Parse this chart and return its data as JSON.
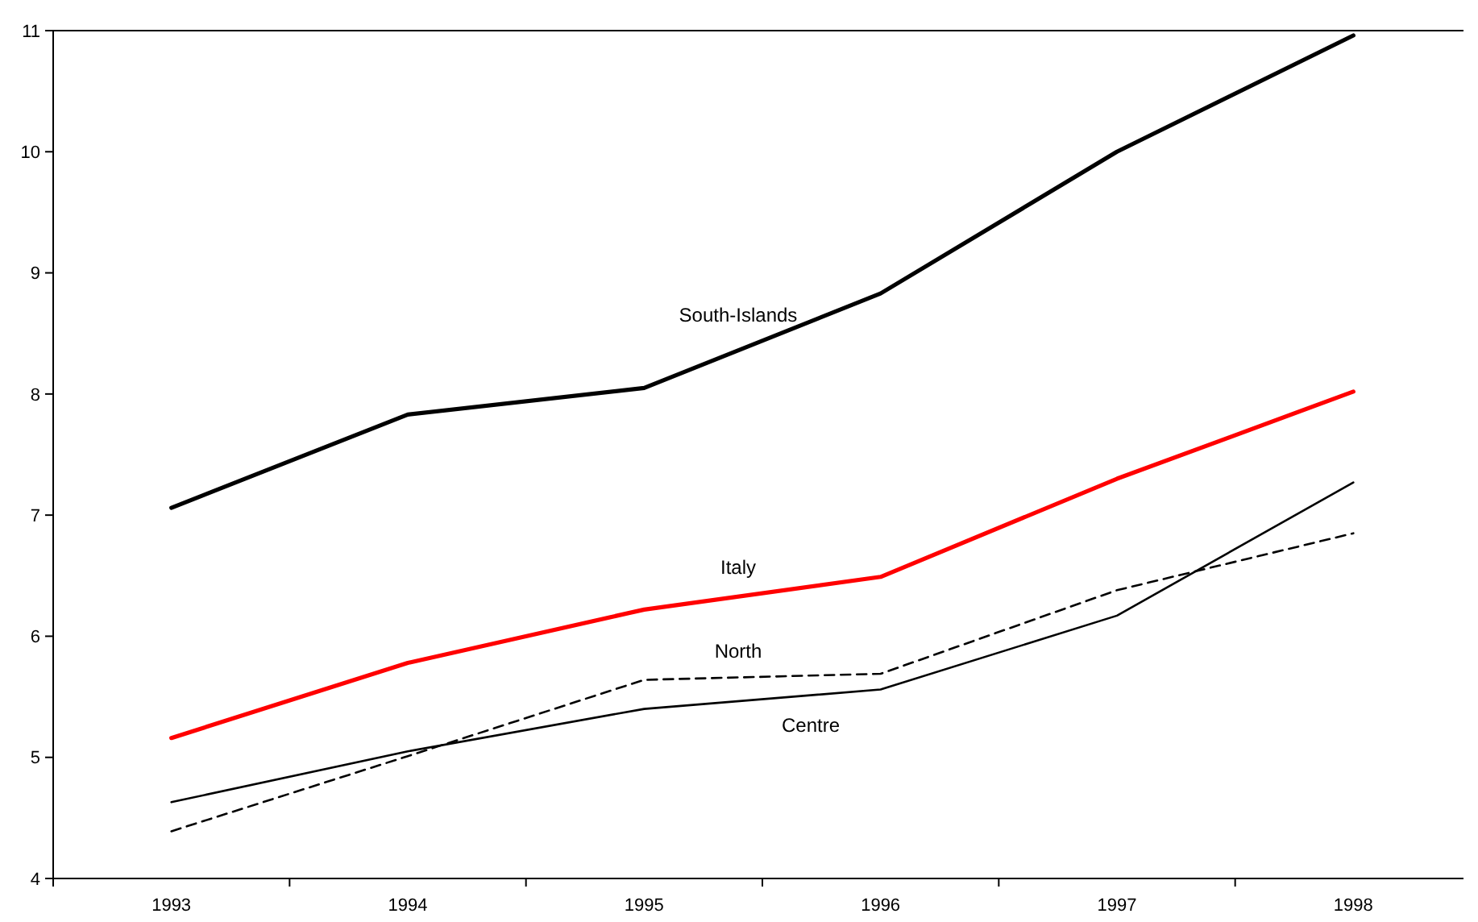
{
  "chart_data": {
    "type": "line",
    "categories": [
      "1993",
      "1994",
      "1995",
      "1996",
      "1997",
      "1998"
    ],
    "ylim": [
      4,
      11
    ],
    "yticks": [
      4,
      5,
      6,
      7,
      8,
      9,
      10,
      11
    ],
    "grid": false,
    "series": [
      {
        "name": "South-Islands",
        "color": "#000000",
        "values": [
          7.06,
          7.83,
          8.05,
          8.83,
          10.0,
          10.96
        ]
      },
      {
        "name": "Italy",
        "color": "#ff0000",
        "values": [
          5.16,
          5.78,
          6.22,
          6.49,
          7.3,
          8.02
        ]
      },
      {
        "name": "North",
        "color": "#000000",
        "line_style": "dashed",
        "values": [
          4.39,
          5.01,
          5.64,
          5.69,
          6.38,
          6.85
        ]
      },
      {
        "name": "Centre",
        "color": "#000000",
        "values": [
          4.63,
          5.05,
          5.4,
          5.56,
          6.17,
          7.27
        ]
      }
    ]
  }
}
